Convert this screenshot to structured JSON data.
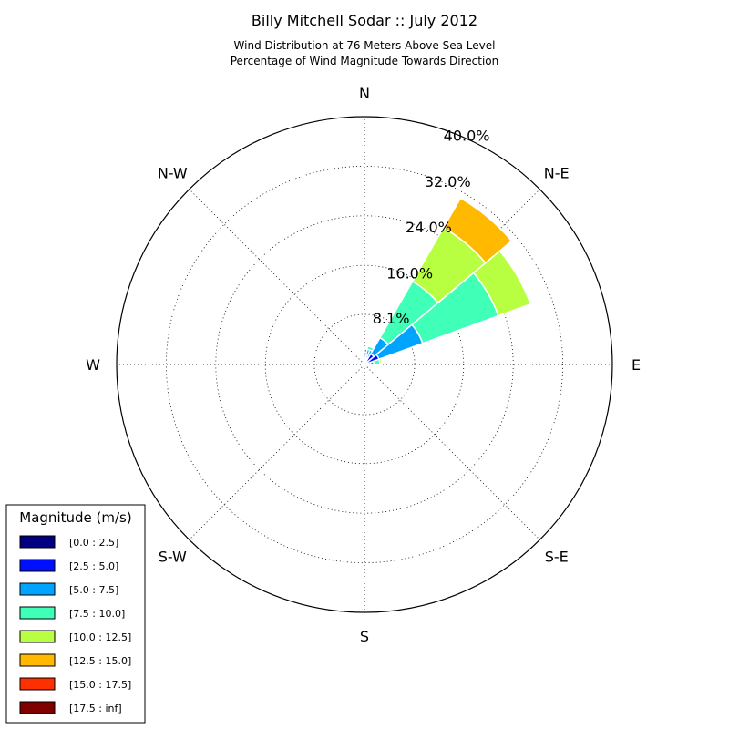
{
  "chart_data": {
    "type": "windrose",
    "title": "Billy Mitchell Sodar :: July 2012",
    "subtitle_lines": [
      "Wind Distribution at 76 Meters Above Sea Level",
      "Percentage of Wind Magnitude Towards Direction"
    ],
    "direction_labels": [
      "N",
      "N-E",
      "E",
      "S-E",
      "S",
      "S-W",
      "W",
      "N-W"
    ],
    "radial_ticks": [
      "8.1%",
      "16.0%",
      "24.0%",
      "32.0%",
      "40.0%"
    ],
    "radial_tick_values": [
      8.1,
      16.0,
      24.0,
      32.0,
      40.0
    ],
    "rmax": 40.0,
    "grid": true,
    "legend_placement": "bottom-left",
    "legend": {
      "title": "Magnitude (m/s)",
      "items": [
        {
          "label": "[0.0 : 2.5]",
          "color": "#000080"
        },
        {
          "label": "[2.5 : 5.0]",
          "color": "#0010ff"
        },
        {
          "label": "[5.0 : 7.5]",
          "color": "#00a4ff"
        },
        {
          "label": "[7.5 : 10.0]",
          "color": "#40ffb7"
        },
        {
          "label": "[10.0 : 12.5]",
          "color": "#b7ff40"
        },
        {
          "label": "[12.5 : 15.0]",
          "color": "#ffb900"
        },
        {
          "label": "[15.0 : 17.5]",
          "color": "#ff3000"
        },
        {
          "label": "[17.5 : inf]",
          "color": "#800000"
        }
      ]
    },
    "sector_width_deg": 20,
    "sectors": [
      {
        "direction_deg": 0,
        "cumulative": [
          0.1,
          0.2,
          0.3,
          0.3,
          0.3,
          0.3,
          0.3,
          0.3
        ]
      },
      {
        "direction_deg": 10,
        "cumulative": [
          0.5,
          2.0,
          2.5,
          2.5,
          2.5,
          2.5,
          2.5,
          2.5
        ]
      },
      {
        "direction_deg": 20,
        "cumulative": [
          0.5,
          1.5,
          2.5,
          3.0,
          3.0,
          3.0,
          3.0,
          3.0
        ]
      },
      {
        "direction_deg": 30,
        "cumulative": [
          0.3,
          1.0,
          2.5,
          2.5,
          2.5,
          2.5,
          2.5,
          2.5
        ]
      },
      {
        "direction_deg": 40,
        "cumulative": [
          0.5,
          2.0,
          5.0,
          15.5,
          25.5,
          31.0,
          31.0,
          31.0
        ]
      },
      {
        "direction_deg": 60,
        "cumulative": [
          0.5,
          2.5,
          10.0,
          23.0,
          28.5,
          28.5,
          28.5,
          28.5
        ]
      },
      {
        "direction_deg": 80,
        "cumulative": [
          0.5,
          1.0,
          1.5,
          2.5,
          2.8,
          2.8,
          2.8,
          2.8
        ]
      },
      {
        "direction_deg": 100,
        "cumulative": [
          0.2,
          0.5,
          0.8,
          0.8,
          0.8,
          0.8,
          0.8,
          0.8
        ]
      }
    ]
  }
}
